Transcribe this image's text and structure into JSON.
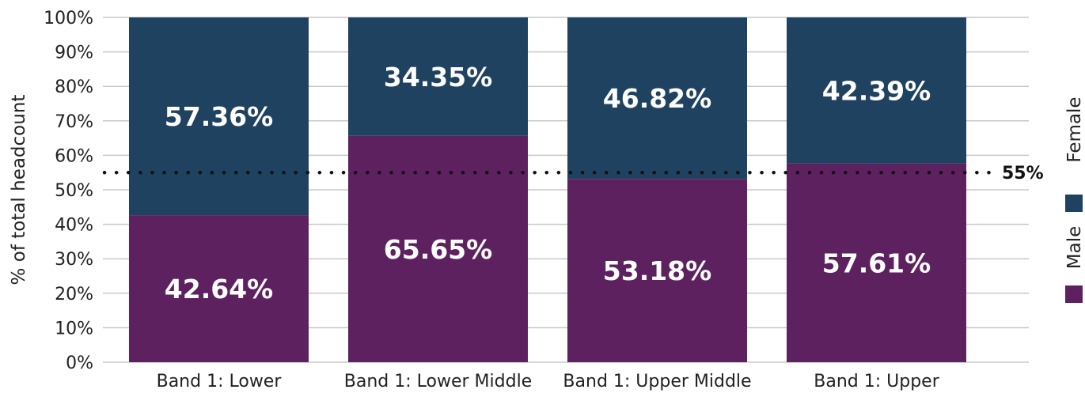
{
  "chart_data": {
    "type": "bar",
    "stacked": true,
    "categories": [
      "Band 1: Lower",
      "Band 1: Lower Middle",
      "Band 1: Upper Middle",
      "Band 1: Upper"
    ],
    "series": [
      {
        "name": "Male",
        "values": [
          42.64,
          65.65,
          53.18,
          57.61
        ],
        "labels": [
          "42.64%",
          "65.65%",
          "53.18%",
          "57.61%"
        ],
        "color": "#5e2160"
      },
      {
        "name": "Female",
        "values": [
          57.36,
          34.35,
          46.82,
          42.39
        ],
        "labels": [
          "57.36%",
          "34.35%",
          "46.82%",
          "42.39%"
        ],
        "color": "#1f4260"
      }
    ],
    "ylabel": "% of total headcount",
    "ylim": [
      0,
      100
    ],
    "yticks": [
      0,
      10,
      20,
      30,
      40,
      50,
      60,
      70,
      80,
      90,
      100
    ],
    "ytick_labels": [
      "0%",
      "10%",
      "20%",
      "30%",
      "40%",
      "50%",
      "60%",
      "70%",
      "80%",
      "90%",
      "100%"
    ],
    "reference_line": {
      "value": 55,
      "label": "55%",
      "style": "dotted"
    },
    "grid": true,
    "legend": {
      "placement": "right",
      "orientation": "vertical-rotated"
    }
  }
}
